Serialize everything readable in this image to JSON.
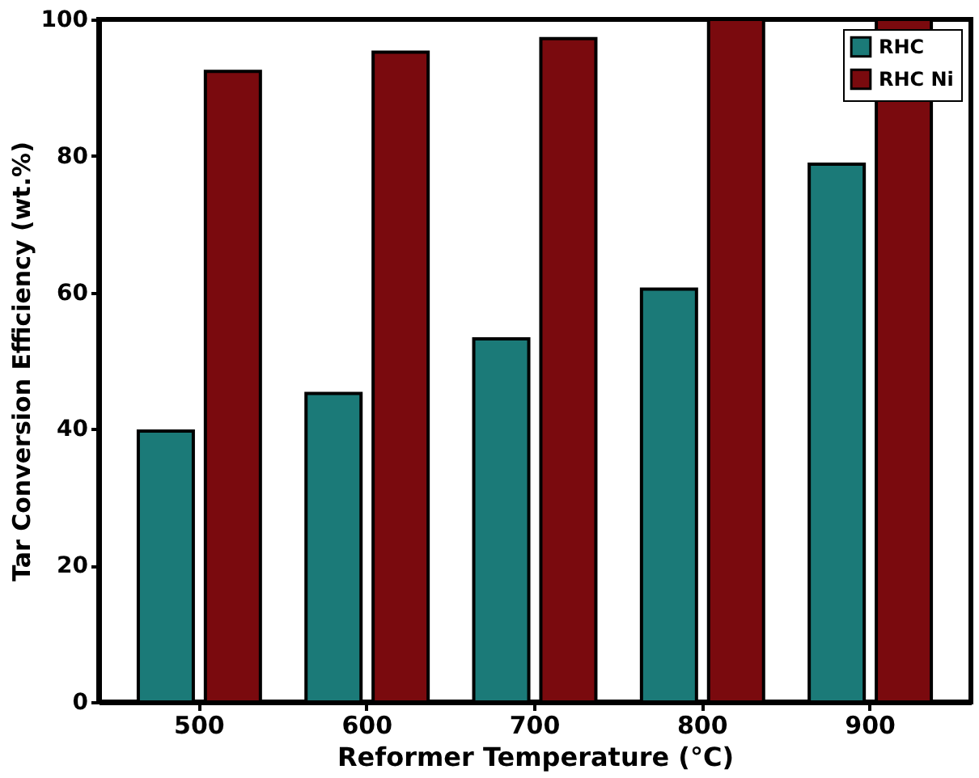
{
  "chart_data": {
    "type": "bar",
    "xlabel": "Reformer Temperature (°C)",
    "ylabel": "Tar Conversion Efficiency (wt.%)",
    "categories": [
      "500",
      "600",
      "700",
      "800",
      "900"
    ],
    "series": [
      {
        "name": "RHC",
        "color": "#1b7a78",
        "values": [
          39.7,
          45.2,
          53.2,
          60.5,
          78.8
        ]
      },
      {
        "name": "RHC Ni",
        "color": "#7a0a0e",
        "values": [
          92.4,
          95.2,
          97.2,
          100,
          100
        ]
      }
    ],
    "ylim": [
      0,
      100
    ],
    "yticks": [
      0,
      20,
      40,
      60,
      80,
      100
    ],
    "grid": false,
    "legend": "top right"
  }
}
